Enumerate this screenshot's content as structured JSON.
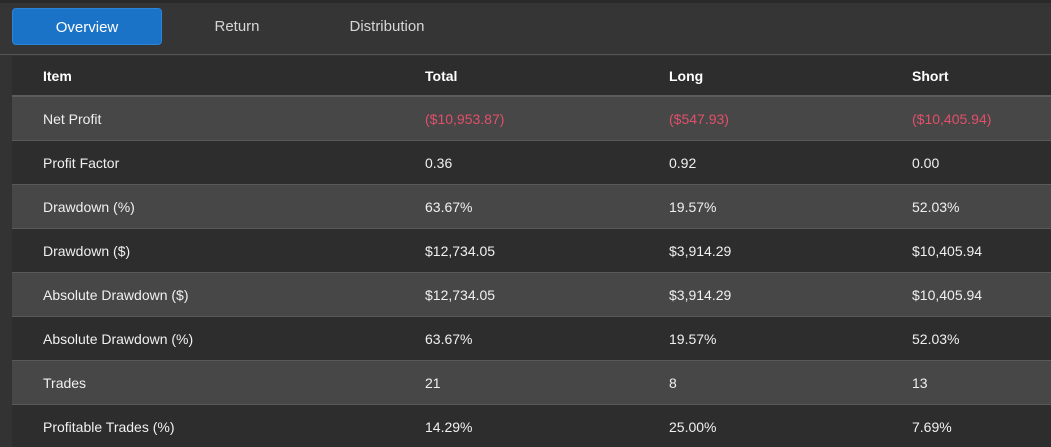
{
  "tabs": [
    {
      "label": "Overview",
      "active": true
    },
    {
      "label": "Return",
      "active": false
    },
    {
      "label": "Distribution",
      "active": false
    }
  ],
  "table": {
    "headers": [
      "Item",
      "Total",
      "Long",
      "Short"
    ],
    "rows": [
      {
        "item": "Net Profit",
        "total": "($10,953.87)",
        "long": "($547.93)",
        "short": "($10,405.94)"
      },
      {
        "item": "Profit Factor",
        "total": "0.36",
        "long": "0.92",
        "short": "0.00"
      },
      {
        "item": "Drawdown (%)",
        "total": "63.67%",
        "long": "19.57%",
        "short": "52.03%"
      },
      {
        "item": "Drawdown ($)",
        "total": "$12,734.05",
        "long": "$3,914.29",
        "short": "$10,405.94"
      },
      {
        "item": "Absolute Drawdown ($)",
        "total": "$12,734.05",
        "long": "$3,914.29",
        "short": "$10,405.94"
      },
      {
        "item": "Absolute Drawdown (%)",
        "total": "63.67%",
        "long": "19.57%",
        "short": "52.03%"
      },
      {
        "item": "Trades",
        "total": "21",
        "long": "8",
        "short": "13"
      },
      {
        "item": "Profitable Trades (%)",
        "total": "14.29%",
        "long": "25.00%",
        "short": "7.69%"
      }
    ]
  },
  "colors": {
    "accent": "#1b73c7",
    "negative": "#e0506a",
    "row_alt": "#474747",
    "row_base": "#2d2d2d"
  }
}
